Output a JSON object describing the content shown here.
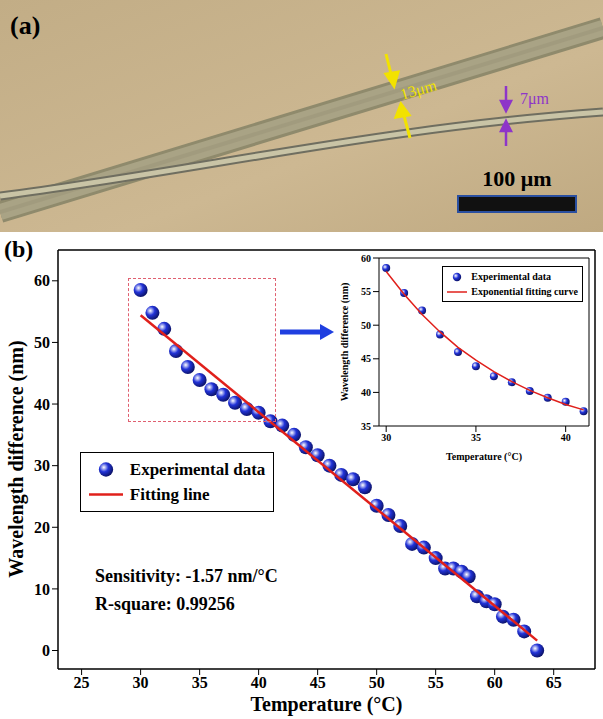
{
  "panel_a": {
    "label": "(a)",
    "annotations": [
      {
        "text": "13μm",
        "color": "#f2e200"
      },
      {
        "text": "7μm",
        "color": "#8e35c9"
      }
    ],
    "scale_bar": "100 μm"
  },
  "chart_data": [
    {
      "type": "scatter",
      "panel_label": "(b)",
      "x_label": "Temperature (°C)",
      "y_label": "Wavelength difference (nm)",
      "xlim": [
        23,
        68.5
      ],
      "xticks": [
        25,
        30,
        35,
        40,
        45,
        50,
        55,
        60,
        65
      ],
      "ylim": [
        -3,
        65
      ],
      "yticks": [
        0,
        10,
        20,
        30,
        40,
        50,
        60
      ],
      "grid": false,
      "legend": "left",
      "annotations": [
        "Sensitivity: -1.57 nm/°C",
        "R-square: 0.99256"
      ],
      "series": [
        {
          "name": "Experimental data",
          "type": "scatter",
          "marker": "circle",
          "color": "#2233d8",
          "x": [
            30,
            31,
            32,
            33,
            34,
            35,
            36,
            37,
            38,
            39,
            40,
            41,
            42,
            43,
            44,
            45,
            46,
            47,
            48,
            49,
            50,
            51,
            52,
            53,
            54,
            55,
            55.8,
            56.5,
            57.2,
            57.8,
            58.5,
            59.3,
            60,
            60.7,
            61.6,
            62.5,
            63.6
          ],
          "values": [
            58.5,
            54.8,
            52.2,
            48.6,
            46.0,
            43.9,
            42.4,
            41.5,
            40.2,
            39.2,
            38.6,
            37.2,
            36.5,
            35.0,
            33.0,
            31.7,
            30.0,
            28.5,
            27.8,
            26.5,
            23.5,
            22.0,
            20.2,
            17.3,
            16.7,
            15.0,
            13.3,
            13.3,
            12.8,
            12.0,
            8.8,
            8.0,
            7.5,
            5.5,
            5.0,
            3.1,
            0
          ]
        },
        {
          "name": "Fitting line",
          "type": "line",
          "line_style": "solid",
          "color": "#e0201b",
          "x": [
            30,
            63.6
          ],
          "values": [
            54.4,
            1.6
          ]
        }
      ]
    },
    {
      "type": "scatter",
      "x_label": "Temperature (°C)",
      "y_label": "Wavelength difference (nm)",
      "xlim": [
        29.6,
        41.3
      ],
      "xticks": [
        30,
        35,
        40
      ],
      "ylim": [
        35,
        60
      ],
      "yticks": [
        35,
        40,
        45,
        50,
        55,
        60
      ],
      "grid": false,
      "legend": "upper right",
      "series": [
        {
          "name": "Experimental data",
          "type": "scatter",
          "marker": "circle",
          "color": "#2233d8",
          "x": [
            30,
            31,
            32,
            33,
            34,
            35,
            36,
            37,
            38,
            39,
            40,
            41
          ],
          "values": [
            58.5,
            54.8,
            52.2,
            48.6,
            46.0,
            43.9,
            42.4,
            41.5,
            40.2,
            39.2,
            38.6,
            37.2
          ]
        },
        {
          "name": "Exponential fitting curve",
          "type": "line",
          "line_style": "solid",
          "color": "#e0201b",
          "x": [
            30,
            31,
            32,
            33,
            34,
            35,
            36,
            37,
            38,
            39,
            40,
            41
          ],
          "values": [
            58.0,
            54.6,
            51.6,
            49.0,
            46.7,
            44.8,
            43.1,
            41.6,
            40.3,
            39.2,
            38.2,
            37.4
          ]
        }
      ]
    }
  ]
}
